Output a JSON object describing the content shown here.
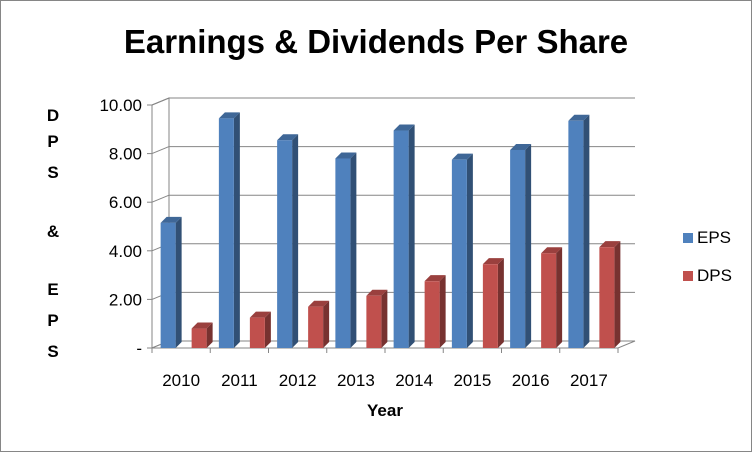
{
  "chart_data": {
    "type": "bar",
    "title": "Earnings & Dividends Per Share",
    "xlabel": "Year",
    "ylabel": "DPS & EPS",
    "ylabel_letters": [
      "D",
      "P",
      "S",
      "&",
      "E",
      "P",
      "S"
    ],
    "categories": [
      "2010",
      "2011",
      "2012",
      "2013",
      "2014",
      "2015",
      "2016",
      "2017"
    ],
    "series": [
      {
        "name": "EPS",
        "values": [
          5.15,
          9.45,
          8.55,
          7.8,
          8.95,
          7.75,
          8.15,
          9.35
        ],
        "color": "#4F81BD"
      },
      {
        "name": "DPS",
        "values": [
          0.8,
          1.25,
          1.7,
          2.15,
          2.75,
          3.45,
          3.9,
          4.15
        ],
        "color": "#C0504D"
      }
    ],
    "y_ticks": [
      "-",
      "2.00",
      "4.00",
      "6.00",
      "8.00",
      "10.00"
    ],
    "ylim": [
      0,
      10
    ],
    "grid": true,
    "legend_position": "right",
    "three_d": true
  }
}
